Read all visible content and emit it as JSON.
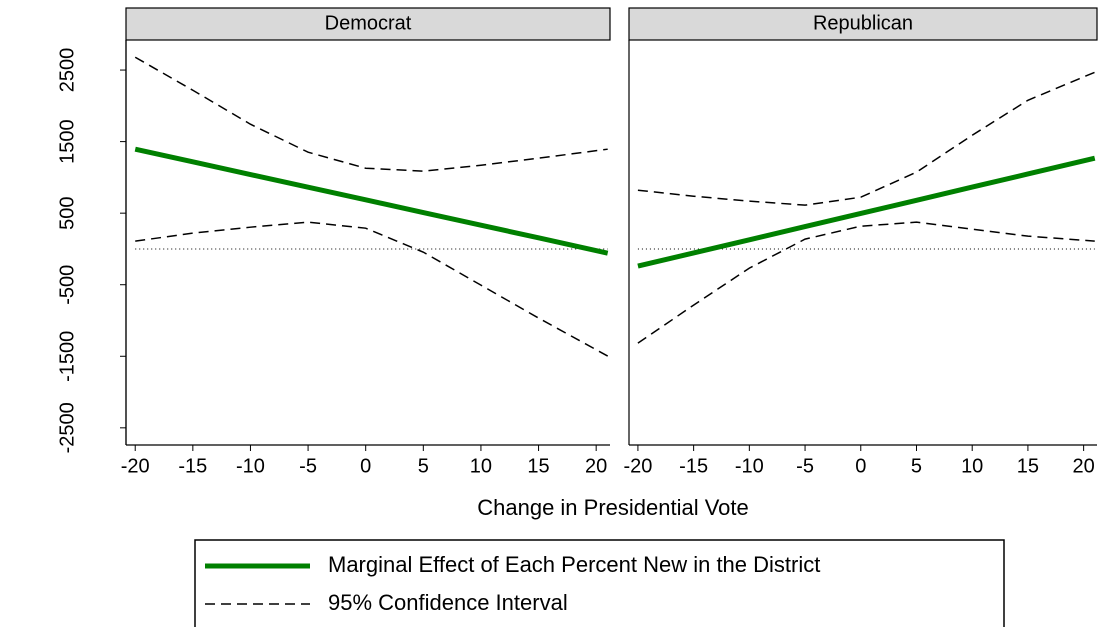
{
  "chart_data": {
    "type": "line",
    "xlabel": "Change in Presidential Vote",
    "x": [
      -20,
      -15,
      -10,
      -5,
      0,
      5,
      10,
      15,
      21
    ],
    "xlim": [
      -20.8,
      21.2
    ],
    "xticks": [
      -20,
      -15,
      -10,
      -5,
      0,
      5,
      10,
      15,
      20
    ],
    "ylim": [
      -2740,
      2920
    ],
    "yticks": [
      -2500,
      -1500,
      -500,
      500,
      1500,
      2500
    ],
    "hline": 0,
    "legend": [
      {
        "name": "Marginal Effect of Each Percent New in the District",
        "color": "#008000",
        "dashed": false
      },
      {
        "name": "95% Confidence Interval",
        "color": "#000000",
        "dashed": true
      }
    ],
    "panels": [
      {
        "title": "Democrat",
        "effect": [
          1394,
          1217,
          1040,
          863,
          686,
          509,
          332,
          155,
          -59
        ],
        "upper": [
          2679,
          2218,
          1743,
          1352,
          1128,
          1087,
          1170,
          1268,
          1394
        ],
        "lower": [
          109,
          221,
          304,
          374,
          290,
          -45,
          -506,
          -966,
          -1497
        ]
      },
      {
        "title": "Republican",
        "effect": [
          -240,
          -56,
          128,
          312,
          496,
          680,
          864,
          1048,
          1268
        ],
        "upper": [
          821,
          737,
          668,
          612,
          723,
          1073,
          1589,
          2078,
          2469
        ],
        "lower": [
          -1316,
          -785,
          -268,
          137,
          318,
          374,
          277,
          179,
          109
        ]
      }
    ]
  }
}
